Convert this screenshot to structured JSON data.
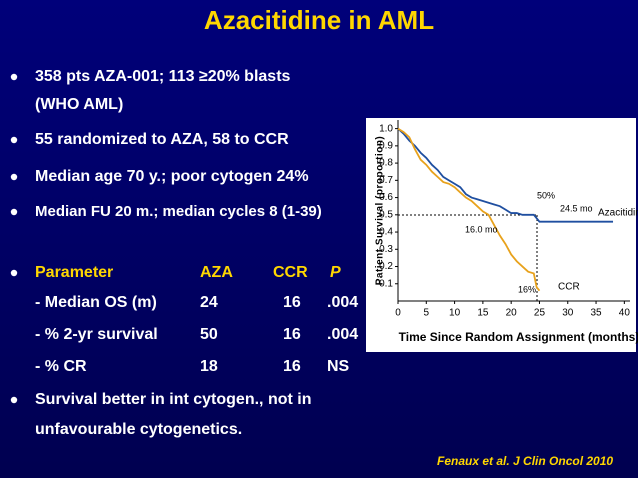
{
  "title": "Azacitidine in AML",
  "bullets": [
    {
      "lines": [
        "358 pts AZA-001; 113 ≥20% blasts",
        "(WHO AML)"
      ]
    },
    {
      "lines": [
        "55 randomized to AZA, 58 to CCR"
      ]
    },
    {
      "lines": [
        "Median age 70 y.; poor cytogen 24%"
      ]
    },
    {
      "lines": [
        "Median FU 20 m.; median cycles 8 (1-39)"
      ]
    }
  ],
  "table": {
    "header": [
      "Parameter",
      "AZA",
      "CCR",
      "P"
    ],
    "rows": [
      [
        "- Median OS (m)",
        "24",
        "16",
        ".004"
      ],
      [
        "- % 2-yr survival",
        "50",
        "16",
        ".004"
      ],
      [
        "- % CR",
        "18",
        "16",
        "NS"
      ]
    ]
  },
  "closing_bullet": {
    "lines": [
      "Survival better in int cytogen., not in",
      "unfavourable cytogenetics."
    ]
  },
  "citation": "Fenaux et al. J Clin Oncol 2010",
  "chart_data": {
    "type": "line",
    "y_label": "Patient Survival (proportion)",
    "x_label": "Time Since Random Assignment (months)",
    "xlim": [
      0,
      41
    ],
    "ylim": [
      0,
      1.05
    ],
    "xticks": [
      0,
      5,
      10,
      15,
      20,
      25,
      30,
      35,
      40
    ],
    "yticks": [
      {
        "value": 1,
        "label": "1.0"
      },
      0.9,
      0.8,
      0.7,
      0.6,
      0.5,
      0.4,
      0.3,
      0.2,
      0.1
    ],
    "annotations": [
      "50%",
      "24.5 mo",
      "16.0 mo",
      "16%"
    ],
    "series": [
      {
        "name": "Azacitidine",
        "color": "#1f4fa0",
        "x": [
          0,
          1,
          2,
          3,
          4,
          5,
          6,
          7,
          8,
          9,
          10,
          11,
          12,
          13,
          14,
          15,
          16,
          17,
          18,
          19,
          20,
          21,
          22,
          23,
          24,
          25,
          26,
          30,
          35,
          38
        ],
        "values": [
          1.0,
          0.97,
          0.93,
          0.9,
          0.86,
          0.83,
          0.79,
          0.76,
          0.72,
          0.7,
          0.68,
          0.66,
          0.62,
          0.6,
          0.59,
          0.58,
          0.57,
          0.56,
          0.55,
          0.53,
          0.51,
          0.51,
          0.5,
          0.5,
          0.5,
          0.46,
          0.46,
          0.46,
          0.46,
          0.46
        ]
      },
      {
        "name": "CCR",
        "color": "#e8a21c",
        "x": [
          0,
          1,
          2,
          3,
          4,
          5,
          6,
          7,
          8,
          9,
          10,
          11,
          12,
          13,
          14,
          15,
          16,
          17,
          18,
          19,
          20,
          21,
          22,
          23,
          24,
          24.5,
          25
        ],
        "values": [
          1.0,
          0.98,
          0.95,
          0.88,
          0.82,
          0.79,
          0.75,
          0.72,
          0.69,
          0.68,
          0.66,
          0.63,
          0.6,
          0.58,
          0.55,
          0.52,
          0.5,
          0.44,
          0.38,
          0.33,
          0.27,
          0.23,
          0.2,
          0.17,
          0.16,
          0.08,
          0.06
        ]
      }
    ]
  }
}
